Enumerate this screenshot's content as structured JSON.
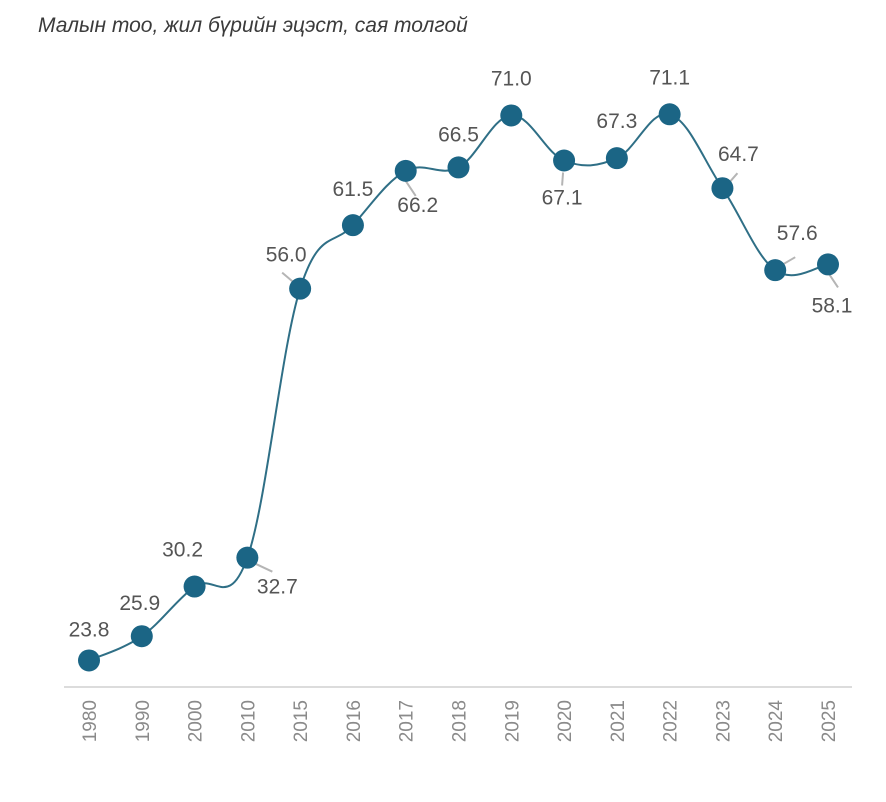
{
  "chart_data": {
    "type": "line",
    "title": "Малын тоо, жил бүрийн эцэст, сая толгой",
    "xlabel": "",
    "ylabel": "",
    "categories": [
      "1980",
      "1990",
      "2000",
      "2010",
      "2015",
      "2016",
      "2017",
      "2018",
      "2019",
      "2020",
      "2021",
      "2022",
      "2023",
      "2024",
      "2025"
    ],
    "values": [
      23.8,
      25.9,
      30.2,
      32.7,
      56.0,
      61.5,
      66.2,
      66.5,
      71.0,
      67.1,
      67.3,
      71.1,
      64.7,
      57.6,
      58.1
    ],
    "value_labels": [
      "23.8",
      "25.9",
      "30.2",
      "32.7",
      "56.0",
      "61.5",
      "66.2",
      "66.5",
      "71.0",
      "67.1",
      "67.3",
      "71.1",
      "64.7",
      "57.6",
      "58.1"
    ],
    "ylim": [
      21.5,
      81
    ],
    "grid": false,
    "colors": {
      "line": "#2f6f86",
      "marker": "#1b6585",
      "axis": "#d0d0d0",
      "leader": "#b5b5b5"
    }
  }
}
